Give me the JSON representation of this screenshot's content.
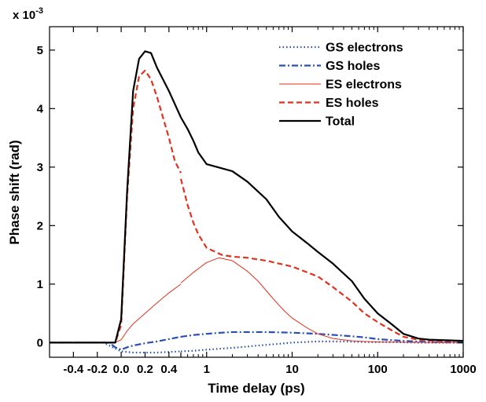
{
  "chart_data": {
    "type": "line",
    "title": "",
    "xlabel": "Time delay (ps)",
    "ylabel": "Phase shift (rad)",
    "y_multiplier": "x 10",
    "y_multiplier_exponent": "-3",
    "x_scale": "linear from -0.6 to 0.5 ps, logarithmic from 0.5 to 1000 ps",
    "xlim": [
      -0.6,
      1000
    ],
    "ylim": [
      -0.25,
      5.4
    ],
    "grid": false,
    "legend_position": "top-right",
    "x_ticks": [
      {
        "value": -0.4,
        "label": "-0.4"
      },
      {
        "value": -0.2,
        "label": "-0.2"
      },
      {
        "value": 0.0,
        "label": "0.0"
      },
      {
        "value": 0.2,
        "label": "0.2"
      },
      {
        "value": 0.4,
        "label": "0.4"
      },
      {
        "value": 1,
        "label": "1"
      },
      {
        "value": 10,
        "label": "10"
      },
      {
        "value": 100,
        "label": "100"
      },
      {
        "value": 1000,
        "label": "1000"
      }
    ],
    "y_ticks": [
      {
        "value": 0,
        "label": "0"
      },
      {
        "value": 1,
        "label": "1"
      },
      {
        "value": 2,
        "label": "2"
      },
      {
        "value": 3,
        "label": "3"
      },
      {
        "value": 4,
        "label": "4"
      },
      {
        "value": 5,
        "label": "5"
      }
    ],
    "series": [
      {
        "name": "GS electrons",
        "color": "#2a4fb4",
        "dash": "dotted",
        "linear_part": [
          [
            -0.6,
            0
          ],
          [
            -0.15,
            0
          ],
          [
            -0.05,
            -0.1
          ],
          [
            0.0,
            -0.15
          ],
          [
            0.1,
            -0.17
          ],
          [
            0.2,
            -0.17
          ],
          [
            0.3,
            -0.17
          ],
          [
            0.4,
            -0.16
          ],
          [
            0.5,
            -0.15
          ]
        ],
        "log_part": [
          [
            0.5,
            -0.15
          ],
          [
            0.7,
            -0.14
          ],
          [
            1,
            -0.12
          ],
          [
            2,
            -0.09
          ],
          [
            4,
            -0.05
          ],
          [
            7,
            -0.02
          ],
          [
            10,
            0.0
          ],
          [
            20,
            0.02
          ],
          [
            40,
            0.02
          ],
          [
            70,
            0.01
          ],
          [
            150,
            0.01
          ],
          [
            300,
            0.0
          ],
          [
            1000,
            0.0
          ]
        ]
      },
      {
        "name": "GS holes",
        "color": "#2a4fb4",
        "dash": "dashdot",
        "linear_part": [
          [
            -0.6,
            0
          ],
          [
            -0.1,
            0
          ],
          [
            -0.05,
            -0.08
          ],
          [
            0.0,
            -0.12
          ],
          [
            0.05,
            -0.08
          ],
          [
            0.1,
            -0.05
          ],
          [
            0.2,
            -0.01
          ],
          [
            0.3,
            0.02
          ],
          [
            0.4,
            0.06
          ],
          [
            0.5,
            0.1
          ]
        ],
        "log_part": [
          [
            0.5,
            0.1
          ],
          [
            0.7,
            0.13
          ],
          [
            1,
            0.15
          ],
          [
            1.5,
            0.17
          ],
          [
            2,
            0.18
          ],
          [
            5,
            0.18
          ],
          [
            10,
            0.17
          ],
          [
            20,
            0.15
          ],
          [
            40,
            0.12
          ],
          [
            70,
            0.09
          ],
          [
            100,
            0.06
          ],
          [
            200,
            0.03
          ],
          [
            400,
            0.01
          ],
          [
            1000,
            0.0
          ]
        ]
      },
      {
        "name": "ES electrons",
        "color": "#e0321e",
        "dash": "solid",
        "thin": true,
        "linear_part": [
          [
            -0.6,
            0
          ],
          [
            -0.05,
            0
          ],
          [
            0.0,
            0.05
          ],
          [
            0.05,
            0.2
          ],
          [
            0.1,
            0.32
          ],
          [
            0.2,
            0.5
          ],
          [
            0.3,
            0.68
          ],
          [
            0.4,
            0.85
          ],
          [
            0.5,
            1.0
          ]
        ],
        "log_part": [
          [
            0.5,
            1.02
          ],
          [
            0.7,
            1.2
          ],
          [
            1,
            1.37
          ],
          [
            1.4,
            1.45
          ],
          [
            2,
            1.4
          ],
          [
            3,
            1.22
          ],
          [
            4,
            1.05
          ],
          [
            6,
            0.75
          ],
          [
            8,
            0.55
          ],
          [
            10,
            0.42
          ],
          [
            15,
            0.25
          ],
          [
            20,
            0.15
          ],
          [
            30,
            0.07
          ],
          [
            50,
            0.03
          ],
          [
            100,
            0.01
          ],
          [
            1000,
            0.0
          ]
        ]
      },
      {
        "name": "ES holes",
        "color": "#e0321e",
        "dash": "dashed",
        "linear_part": [
          [
            -0.6,
            0
          ],
          [
            -0.05,
            0
          ],
          [
            0.0,
            0.3
          ],
          [
            0.05,
            2.5
          ],
          [
            0.1,
            4.0
          ],
          [
            0.15,
            4.55
          ],
          [
            0.2,
            4.65
          ],
          [
            0.25,
            4.5
          ],
          [
            0.3,
            4.2
          ],
          [
            0.4,
            3.5
          ],
          [
            0.45,
            3.1
          ],
          [
            0.5,
            2.9
          ]
        ],
        "log_part": [
          [
            0.5,
            2.8
          ],
          [
            0.6,
            2.35
          ],
          [
            0.7,
            2.05
          ],
          [
            0.8,
            1.85
          ],
          [
            1,
            1.62
          ],
          [
            1.5,
            1.5
          ],
          [
            2,
            1.47
          ],
          [
            3,
            1.45
          ],
          [
            5,
            1.4
          ],
          [
            10,
            1.3
          ],
          [
            20,
            1.13
          ],
          [
            30,
            0.95
          ],
          [
            50,
            0.7
          ],
          [
            70,
            0.5
          ],
          [
            100,
            0.35
          ],
          [
            150,
            0.2
          ],
          [
            200,
            0.1
          ],
          [
            300,
            0.05
          ],
          [
            500,
            0.03
          ],
          [
            1000,
            0.03
          ]
        ]
      },
      {
        "name": "Total",
        "color": "#000000",
        "dash": "solid",
        "linear_part": [
          [
            -0.6,
            0
          ],
          [
            -0.05,
            0
          ],
          [
            0.0,
            0.4
          ],
          [
            0.05,
            2.6
          ],
          [
            0.1,
            4.3
          ],
          [
            0.15,
            4.85
          ],
          [
            0.2,
            4.98
          ],
          [
            0.25,
            4.95
          ],
          [
            0.3,
            4.7
          ],
          [
            0.4,
            4.3
          ],
          [
            0.5,
            3.85
          ]
        ],
        "log_part": [
          [
            0.5,
            3.85
          ],
          [
            0.6,
            3.65
          ],
          [
            0.7,
            3.45
          ],
          [
            0.8,
            3.25
          ],
          [
            1,
            3.05
          ],
          [
            1.5,
            2.98
          ],
          [
            2,
            2.93
          ],
          [
            3,
            2.75
          ],
          [
            5,
            2.45
          ],
          [
            7,
            2.15
          ],
          [
            10,
            1.9
          ],
          [
            15,
            1.7
          ],
          [
            20,
            1.55
          ],
          [
            30,
            1.35
          ],
          [
            50,
            1.05
          ],
          [
            70,
            0.75
          ],
          [
            100,
            0.5
          ],
          [
            150,
            0.3
          ],
          [
            200,
            0.15
          ],
          [
            300,
            0.07
          ],
          [
            400,
            0.05
          ],
          [
            1000,
            0.03
          ]
        ]
      }
    ]
  }
}
